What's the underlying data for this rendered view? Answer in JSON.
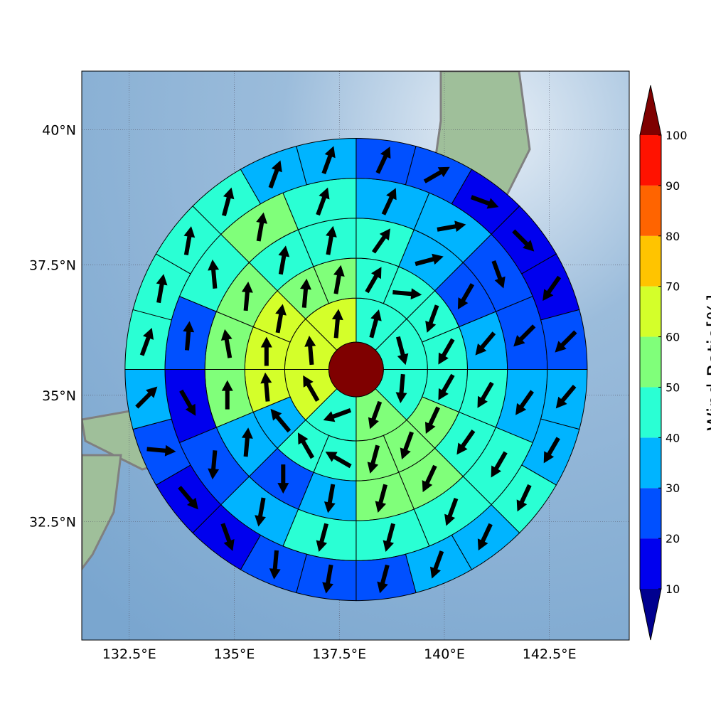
{
  "chart_data": {
    "type": "polar_sector_map",
    "projection": "mercator",
    "xlim": [
      131.37,
      144.4
    ],
    "ylim": [
      30.1,
      41.06
    ],
    "xticks": [
      {
        "value": 132.5,
        "label": "132.5°E"
      },
      {
        "value": 135,
        "label": "135°E"
      },
      {
        "value": 137.5,
        "label": "137.5°E"
      },
      {
        "value": 140,
        "label": "140°E"
      },
      {
        "value": 142.5,
        "label": "142.5°E"
      }
    ],
    "yticks": [
      {
        "value": 32.5,
        "label": "32.5°N"
      },
      {
        "value": 35,
        "label": "35°N"
      },
      {
        "value": 37.5,
        "label": "37.5°N"
      },
      {
        "value": 40,
        "label": "40°N"
      }
    ],
    "grid": true,
    "center": [
      137.9,
      35.5
    ],
    "center_value": 100,
    "ring_radii_deg": [
      0.65,
      1.7,
      2.65,
      3.6,
      4.55,
      5.5
    ],
    "rings": [
      {
        "values": [
          45,
          45,
          45,
          55,
          45,
          65,
          65,
          65
        ],
        "directions": [
          15,
          165,
          185,
          200,
          250,
          330,
          355,
          5
        ]
      },
      {
        "values": [
          45,
          45,
          45,
          45,
          45,
          55,
          55,
          55,
          45,
          45,
          35,
          62,
          62,
          65,
          55,
          55
        ],
        "directions": [
          30,
          95,
          200,
          210,
          210,
          205,
          200,
          195,
          300,
          330,
          320,
          355,
          0,
          10,
          5,
          10
        ]
      },
      {
        "values": [
          45,
          35,
          25,
          35,
          45,
          45,
          55,
          55,
          35,
          25,
          35,
          55,
          55,
          55,
          45,
          45
        ],
        "directions": [
          35,
          75,
          210,
          220,
          210,
          215,
          205,
          195,
          190,
          180,
          5,
          0,
          350,
          5,
          10,
          10
        ]
      },
      {
        "values": [
          35,
          35,
          25,
          25,
          35,
          45,
          45,
          45,
          45,
          35,
          25,
          15,
          25,
          45,
          55,
          45
        ],
        "directions": [
          25,
          80,
          160,
          225,
          215,
          210,
          200,
          195,
          195,
          190,
          185,
          150,
          5,
          355,
          10,
          20
        ]
      },
      {
        "values": [
          25,
          25,
          15,
          15,
          15,
          25,
          35,
          35,
          45,
          35,
          35,
          25,
          25,
          25,
          15,
          15,
          25,
          35,
          45,
          45,
          45,
          45,
          35,
          35
        ],
        "directions": [
          25,
          60,
          110,
          135,
          215,
          225,
          220,
          210,
          205,
          205,
          200,
          195,
          190,
          185,
          160,
          140,
          95,
          45,
          20,
          10,
          10,
          15,
          20,
          20
        ]
      }
    ],
    "colorbar": {
      "label": "Wind Ratio[%]",
      "ticks": [
        10,
        20,
        30,
        40,
        50,
        60,
        70,
        80,
        90,
        100
      ],
      "colors": [
        "#0000ee",
        "#0050ff",
        "#00b4ff",
        "#2affd4",
        "#80ff7a",
        "#d4ff2a",
        "#ffc400",
        "#ff6400",
        "#ff1200"
      ],
      "under_color": "#00008f",
      "over_color": "#7f0000"
    }
  }
}
